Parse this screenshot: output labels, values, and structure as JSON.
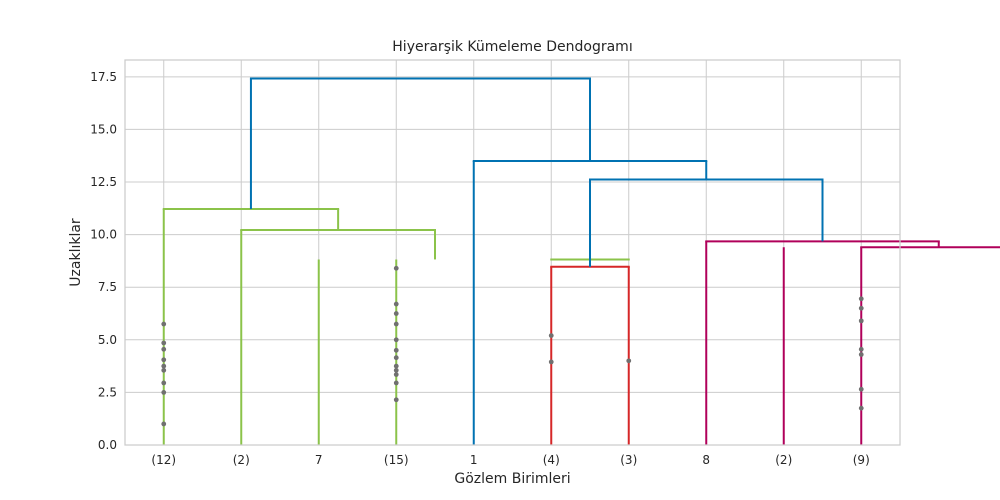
{
  "chart_data": {
    "type": "dendrogram",
    "title": "Hiyerarşik Kümeleme Dendogramı",
    "xlabel": "Gözlem Birimleri",
    "ylabel": "Uzaklıklar",
    "ylim": [
      0,
      18.3
    ],
    "y_ticks": [
      "0.0",
      "2.5",
      "5.0",
      "7.5",
      "10.0",
      "12.5",
      "15.0",
      "17.5"
    ],
    "leaf_labels": [
      "(12)",
      "(2)",
      "7",
      "(15)",
      "1",
      "(4)",
      "(3)",
      "8",
      "(2)",
      "(9)"
    ],
    "grid": true,
    "colors": {
      "background": "#ffffff",
      "grid": "#cccccc",
      "spine": "#cccccc",
      "green": "#8bc34a",
      "blue": "#0072b2",
      "red": "#d62728",
      "magenta": "#b0005a",
      "dot": "#707070"
    },
    "merges": [
      {
        "left": 6,
        "right": 7,
        "height": 8.82,
        "color": "green"
      },
      {
        "left": 4.5,
        "right": 2,
        "height": 10.22,
        "color": "green"
      },
      {
        "left": 1,
        "right": 3.25,
        "height": 11.22,
        "color": "green"
      },
      {
        "left": 6,
        "right": 7,
        "height": 8.47,
        "color": "red"
      },
      {
        "left": 10,
        "right": 12,
        "height": 9.4,
        "color": "magenta"
      },
      {
        "left": 8,
        "right": 11,
        "height": 9.68,
        "color": "magenta"
      },
      {
        "left": 6.5,
        "right": 9.5,
        "height": 12.62,
        "color": "blue"
      },
      {
        "left": 5,
        "right": 8,
        "height": 13.5,
        "color": "blue"
      },
      {
        "left": 2.125,
        "right": 6.5,
        "height": 17.42,
        "color": "blue"
      }
    ],
    "stems": [
      {
        "pos": 1,
        "top": 11.22,
        "color": "green"
      },
      {
        "pos": 2,
        "top": 10.22,
        "color": "green"
      },
      {
        "pos": 3,
        "top": 8.82,
        "color": "green"
      },
      {
        "pos": 4,
        "top": 8.82,
        "color": "green"
      },
      {
        "pos": 5,
        "top": 13.5,
        "color": "blue"
      },
      {
        "pos": 6,
        "top": 8.47,
        "color": "red"
      },
      {
        "pos": 7,
        "top": 8.47,
        "color": "red"
      },
      {
        "pos": 8,
        "top": 9.68,
        "color": "magenta"
      },
      {
        "pos": 9,
        "top": 9.4,
        "color": "magenta"
      },
      {
        "pos": 10,
        "top": 9.4,
        "color": "magenta"
      }
    ],
    "collapsed_points": [
      {
        "leaf": 1,
        "heights": [
          5.75,
          4.85,
          4.55,
          4.05,
          3.75,
          3.55,
          2.95,
          2.5,
          1.0
        ]
      },
      {
        "leaf": 4,
        "heights": [
          8.4,
          6.7,
          6.25,
          5.75,
          5.0,
          4.5,
          4.15,
          3.75,
          3.55,
          3.35,
          2.95,
          2.15
        ]
      },
      {
        "leaf": 6,
        "heights": [
          5.2,
          3.95
        ]
      },
      {
        "leaf": 7,
        "heights": [
          4.0
        ]
      },
      {
        "leaf": 10,
        "heights": [
          6.95,
          6.5,
          5.9,
          4.55,
          4.3,
          2.65,
          1.75
        ]
      }
    ]
  }
}
